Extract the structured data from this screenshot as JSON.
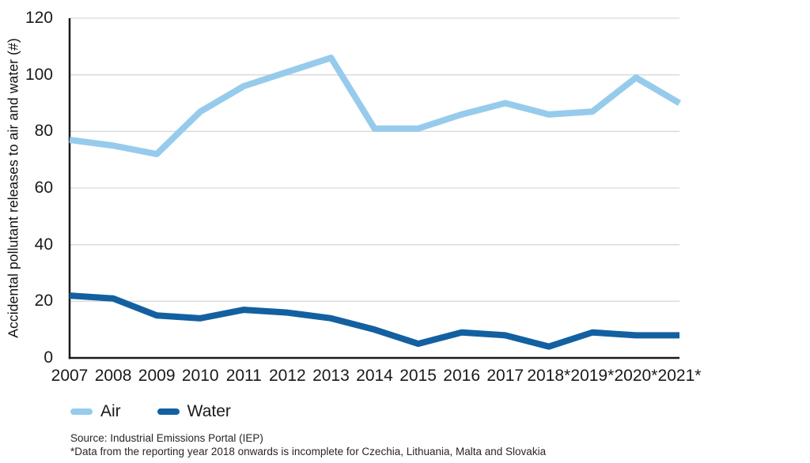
{
  "chart_data": {
    "type": "line",
    "title": "",
    "y_axis_title": "Accidental pollutant releases to air and water (#)",
    "x_label": "",
    "categories": [
      "2007",
      "2008",
      "2009",
      "2010",
      "2011",
      "2012",
      "2013",
      "2014",
      "2015",
      "2016",
      "2017",
      "2018*",
      "2019*",
      "2020*",
      "2021*"
    ],
    "series": [
      {
        "name": "Air",
        "color": "#96CBEC",
        "values": [
          77,
          75,
          72,
          87,
          96,
          101,
          106,
          81,
          81,
          86,
          90,
          86,
          87,
          99,
          90
        ]
      },
      {
        "name": "Water",
        "color": "#1360A1",
        "values": [
          22,
          21,
          15,
          14,
          17,
          16,
          14,
          10,
          5,
          9,
          8,
          4,
          9,
          8,
          8
        ]
      }
    ],
    "ylim": [
      0,
      120
    ],
    "yticks": [
      0,
      20,
      40,
      60,
      80,
      100,
      120
    ],
    "grid": "horizontal",
    "legend_position": "bottom-left"
  },
  "footer": {
    "source": "Source: Industrial Emissions Portal (IEP)",
    "note": "*Data from the reporting year 2018 onwards is incomplete for Czechia, Lithuania, Malta and Slovakia"
  },
  "colors": {
    "grid": "#d9d9d9",
    "axis": "#1a1a1a",
    "text": "#1a1a1a",
    "background": "#ffffff"
  }
}
